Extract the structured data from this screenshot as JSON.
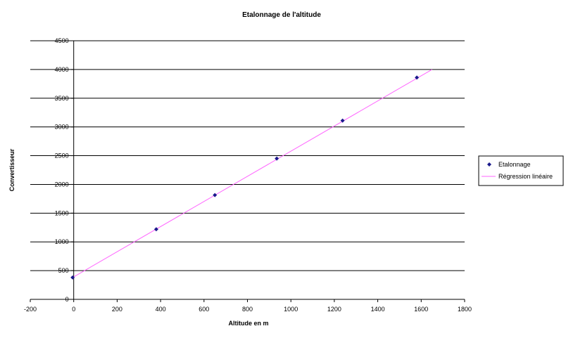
{
  "chart_data": {
    "type": "scatter",
    "title": "Etalonnage de l'altitude",
    "xlabel": "Altitude en m",
    "ylabel": "Convertisseur",
    "xlim": [
      -200,
      1800
    ],
    "ylim": [
      0,
      4500
    ],
    "xticks": [
      "-200",
      "0",
      "200",
      "400",
      "600",
      "800",
      "1000",
      "1200",
      "1400",
      "1600",
      "1800"
    ],
    "yticks": [
      "0",
      "500",
      "1000",
      "1500",
      "2000",
      "2500",
      "3000",
      "3500",
      "4000",
      "4500"
    ],
    "grid": "horizontal",
    "legend_position": "right",
    "series": [
      {
        "name": "Etalonnage",
        "kind": "points",
        "color": "#1a1a8c",
        "x": [
          -5,
          380,
          650,
          935,
          1238,
          1580
        ],
        "y": [
          380,
          1220,
          1815,
          2450,
          3110,
          3860
        ]
      },
      {
        "name": "Régression linéaire",
        "kind": "line",
        "color": "#ff66ff",
        "x": [
          -5,
          1650
        ],
        "y": [
          380,
          4000
        ]
      }
    ]
  }
}
